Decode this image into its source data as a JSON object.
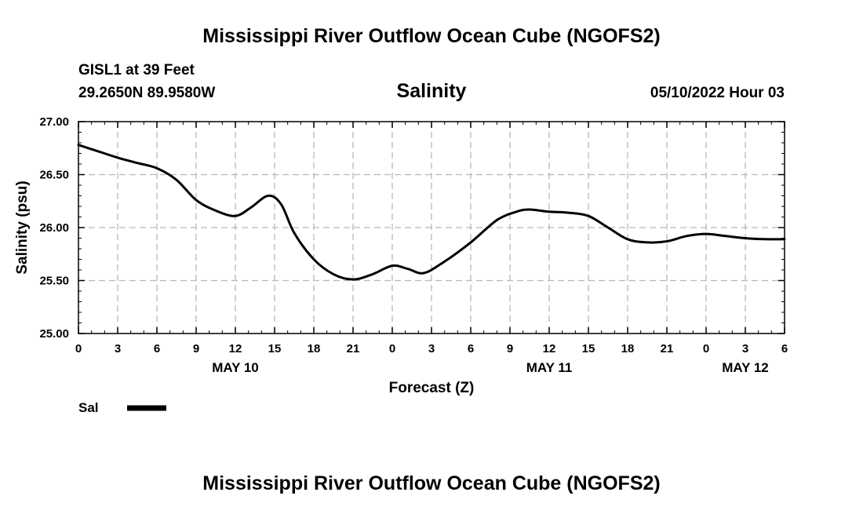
{
  "page": {
    "main_title": "Mississippi River Outflow Ocean Cube (NGOFS2)",
    "footer_title": "Mississippi River Outflow Ocean Cube (NGOFS2)",
    "station": "GISL1 at 39 Feet",
    "location": "29.2650N  89.9580W",
    "datetime": "05/10/2022 Hour 03"
  },
  "chart_data": {
    "type": "line",
    "title": "Salinity",
    "xlabel": "Forecast (Z)",
    "ylabel": "Salinity (psu)",
    "ylim": [
      25.0,
      27.0
    ],
    "xlim": [
      0,
      54
    ],
    "grid": true,
    "y_ticks": [
      "25.00",
      "25.50",
      "26.00",
      "26.50",
      "27.00"
    ],
    "x_ticks": [
      "0",
      "3",
      "6",
      "9",
      "12",
      "15",
      "18",
      "21",
      "0",
      "3",
      "6",
      "9",
      "12",
      "15",
      "18",
      "21",
      "0",
      "3",
      "6"
    ],
    "date_labels": [
      {
        "label": "MAY 10",
        "hour": 12
      },
      {
        "label": "MAY 11",
        "hour": 36
      },
      {
        "label": "MAY 12",
        "hour": 51
      }
    ],
    "legend": {
      "label": "Sal",
      "position": "bottom-left"
    },
    "series": [
      {
        "name": "Sal",
        "color": "#000000",
        "x": [
          0,
          1.5,
          3,
          4.5,
          6,
          7.5,
          9,
          10.5,
          12,
          13.2,
          14.5,
          15.5,
          16.5,
          18,
          19.5,
          21,
          22.5,
          24,
          25.2,
          26.4,
          28,
          30,
          32,
          33.5,
          34.5,
          36,
          37.5,
          39,
          40.5,
          42,
          43.5,
          45,
          46.5,
          48,
          49.5,
          51,
          52.5,
          54
        ],
        "values": [
          26.78,
          26.72,
          26.66,
          26.61,
          26.56,
          26.45,
          26.26,
          26.16,
          26.11,
          26.19,
          26.3,
          26.22,
          25.95,
          25.7,
          25.56,
          25.51,
          25.56,
          25.64,
          25.61,
          25.57,
          25.68,
          25.86,
          26.07,
          26.15,
          26.17,
          26.15,
          26.14,
          26.11,
          26.0,
          25.89,
          25.86,
          25.87,
          25.92,
          25.94,
          25.92,
          25.9,
          25.89,
          25.89
        ]
      }
    ]
  }
}
